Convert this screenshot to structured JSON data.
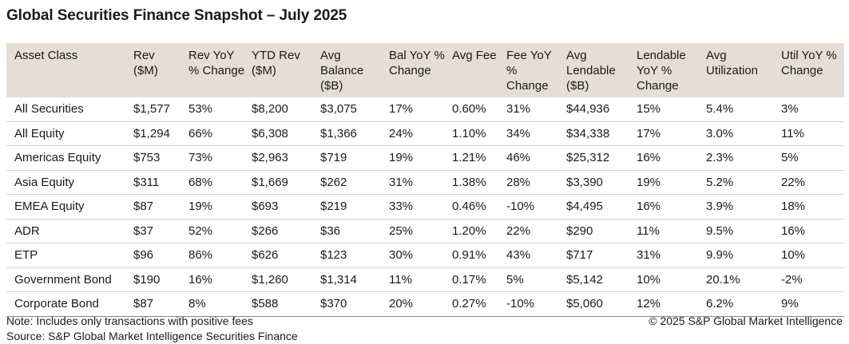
{
  "title": "Global Securities Finance Snapshot – July 2025",
  "table": {
    "columns": [
      "Asset Class",
      "Rev ($M)",
      "Rev YoY % Change",
      "YTD Rev ($M)",
      "Avg Balance ($B)",
      "Bal YoY % Change",
      "Avg Fee",
      "Fee YoY % Change",
      "Avg Lendable ($B)",
      "Lendable YoY % Change",
      "Avg Utilization",
      "Util YoY % Change"
    ],
    "rows": [
      [
        "All Securities",
        "$1,577",
        "53%",
        "$8,200",
        "$3,075",
        "17%",
        "0.60%",
        "31%",
        "$44,936",
        "15%",
        "5.4%",
        "3%"
      ],
      [
        "All Equity",
        "$1,294",
        "66%",
        "$6,308",
        "$1,366",
        "24%",
        "1.10%",
        "34%",
        "$34,338",
        "17%",
        "3.0%",
        "11%"
      ],
      [
        "Americas Equity",
        "$753",
        "73%",
        "$2,963",
        "$719",
        "19%",
        "1.21%",
        "46%",
        "$25,312",
        "16%",
        "2.3%",
        "5%"
      ],
      [
        "Asia Equity",
        "$311",
        "68%",
        "$1,669",
        "$262",
        "31%",
        "1.38%",
        "28%",
        "$3,390",
        "19%",
        "5.2%",
        "22%"
      ],
      [
        "EMEA Equity",
        "$87",
        "19%",
        "$693",
        "$219",
        "33%",
        "0.46%",
        "-10%",
        "$4,495",
        "16%",
        "3.9%",
        "18%"
      ],
      [
        "ADR",
        "$37",
        "52%",
        "$266",
        "$36",
        "25%",
        "1.20%",
        "22%",
        "$290",
        "11%",
        "9.5%",
        "16%"
      ],
      [
        "ETP",
        "$96",
        "86%",
        "$626",
        "$123",
        "30%",
        "0.91%",
        "43%",
        "$717",
        "31%",
        "9.9%",
        "10%"
      ],
      [
        "Government Bond",
        "$190",
        "16%",
        "$1,260",
        "$1,314",
        "11%",
        "0.17%",
        "5%",
        "$5,142",
        "10%",
        "20.1%",
        "-2%"
      ],
      [
        "Corporate Bond",
        "$87",
        "8%",
        "$588",
        "$370",
        "20%",
        "0.27%",
        "-10%",
        "$5,060",
        "12%",
        "6.2%",
        "9%"
      ]
    ]
  },
  "footer": {
    "note": "Note: Includes only transactions with positive fees",
    "source": "Source: S&P Global Market Intelligence Securities Finance",
    "copyright": "© 2025 S&P Global Market Intelligence"
  }
}
